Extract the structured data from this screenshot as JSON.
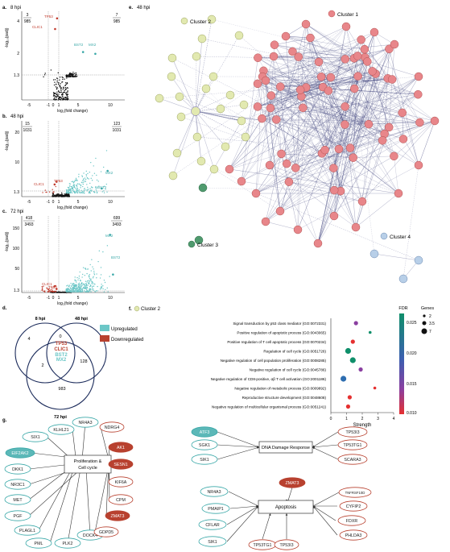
{
  "panels": {
    "a": {
      "letter": "a.",
      "title": "8 hpi",
      "left_frac": {
        "num": "3",
        "den": "985"
      },
      "right_frac": {
        "num": "7",
        "den": "985"
      },
      "ylabel": "-log₁₀(padj)",
      "xlabel": "log₂(fold change)",
      "yticks": [
        "4",
        "2",
        "1.3"
      ],
      "xticks": [
        "-5",
        "-1",
        "0",
        "1",
        "5",
        "10"
      ],
      "down_labels": [
        "TP53",
        "CLIC1"
      ],
      "up_labels": [
        "BST2",
        "MX2"
      ]
    },
    "b": {
      "letter": "b.",
      "title": "48 hpi",
      "left_frac": {
        "num": "15",
        "den": "1031"
      },
      "right_frac": {
        "num": "123",
        "den": "1031"
      },
      "ylabel": "-log₁₀(padj)",
      "xlabel": "log₂(fold change)",
      "yticks": [
        "20",
        "10",
        "1.3"
      ],
      "xticks": [
        "-5",
        "-1",
        "0",
        "1",
        "5",
        "10"
      ],
      "down_labels": [
        "CLIC1",
        "TP53"
      ],
      "up_labels": [
        "MX2",
        "BST2"
      ]
    },
    "c": {
      "letter": "c.",
      "title": "72 hpi",
      "left_frac": {
        "num": "418",
        "den": "3493"
      },
      "right_frac": {
        "num": "699",
        "den": "3493"
      },
      "ylabel": "-log₁₀(padj)",
      "xlabel": "log₂(fold change)",
      "yticks": [
        "150",
        "100",
        "50",
        "1.3"
      ],
      "xticks": [
        "-5",
        "-1",
        "0",
        "1",
        "5",
        "10"
      ],
      "down_labels": [
        "CLIC1",
        "TP53"
      ],
      "up_labels": [
        "MX2",
        "BST2"
      ]
    },
    "d": {
      "letter": "d.",
      "sets": [
        "8 hpi",
        "48 hpi",
        "72 hpi"
      ],
      "counts": {
        "only8": "4",
        "only48": "",
        "only72": "983",
        "i8_48": "0",
        "i48_72": "128",
        "i8_72": "2"
      },
      "center": [
        "TP53",
        "CLIC1",
        "BST2",
        "MX2"
      ],
      "legend": [
        {
          "label": "Upregulated",
          "color": "#6cc7c7"
        },
        {
          "label": "Downregulated",
          "color": "#b8412f"
        }
      ]
    },
    "e": {
      "letter": "e.",
      "title": "48 hpi",
      "clusters": [
        {
          "label": "Cluster 1",
          "color": "#e8868a"
        },
        {
          "label": "Cluster 2",
          "color": "#e2e9b0"
        },
        {
          "label": "Cluster 3",
          "color": "#4f9a6e"
        },
        {
          "label": "Cluster 4",
          "color": "#b8cfe8"
        }
      ]
    },
    "f": {
      "letter": "f.",
      "cluster_label": "Cluster 2",
      "xlabel": "Strength",
      "fdr_title": "FDR",
      "fdr_ticks": [
        "0.025",
        "0.020",
        "0.015",
        "0.010"
      ],
      "genes_title": "Genes",
      "genes_sizes": [
        "2",
        "3.5",
        "7"
      ]
    },
    "g": {
      "letter": "g.",
      "prolif": {
        "label": "Proliferation &\nCell cycle",
        "up": [
          "SIX1",
          "KLHL21",
          "NR4A3",
          "EIF2AK2",
          "DKK1",
          "NR3C1",
          "MET",
          "PGF",
          "PLAGL1",
          "PML",
          "PLK2",
          "DOCK4"
        ],
        "down": [
          "NDRG4",
          "AK1",
          "SESN1",
          "KIF6A",
          "CPM",
          "ZMAT3",
          "GDPD5"
        ]
      },
      "dna": {
        "label": "DNA Damage Response",
        "left": [
          "ATF3",
          "SGK1",
          "SIK1"
        ],
        "right": [
          "TP53I3",
          "TP53TG1",
          "SCARA3"
        ]
      },
      "apop": {
        "label": "Apoptosis",
        "top": [
          "ZMAT3"
        ],
        "left": [
          "NR4A3",
          "PMAIP1",
          "CFLAR",
          "SIK1"
        ],
        "right": [
          "TNFRSF10D",
          "CYFIP2",
          "FDXR",
          "PHLDA3"
        ],
        "bottom": [
          "TP53TG1",
          "TP53I3"
        ]
      }
    }
  },
  "chart_data": [
    {
      "type": "scatter",
      "title": "8 hpi",
      "xlabel": "log2(fold change)",
      "ylabel": "-log10(padj)",
      "xlim": [
        -8,
        13
      ],
      "ylim": [
        0,
        5
      ],
      "threshold": {
        "y": 1.3,
        "x": [
          -1,
          1
        ]
      },
      "labeled_points": [
        {
          "name": "TP53",
          "x": -0.8,
          "y": 4.6
        },
        {
          "name": "CLIC1",
          "x": -1.2,
          "y": 4.0
        },
        {
          "name": "BST2",
          "x": 4.5,
          "y": 2.7
        },
        {
          "name": "MX2",
          "x": 7.0,
          "y": 2.6
        }
      ],
      "counts": {
        "down": 3,
        "up": 7,
        "total": 985
      }
    },
    {
      "type": "scatter",
      "title": "48 hpi",
      "xlabel": "log2(fold change)",
      "ylabel": "-log10(padj)",
      "xlim": [
        -8,
        13
      ],
      "ylim": [
        0,
        28
      ],
      "threshold": {
        "y": 1.3,
        "x": [
          -1,
          1
        ]
      },
      "labeled_points": [
        {
          "name": "CLIC1",
          "x": -1.3,
          "y": 4.5
        },
        {
          "name": "TP53",
          "x": -0.9,
          "y": 5.5
        },
        {
          "name": "MX2",
          "x": 9.5,
          "y": 9.5
        },
        {
          "name": "BST2",
          "x": 8.3,
          "y": 3.0
        }
      ],
      "counts": {
        "down": 15,
        "up": 123,
        "total": 1031
      }
    },
    {
      "type": "scatter",
      "title": "72 hpi",
      "xlabel": "log2(fold change)",
      "ylabel": "-log10(padj)",
      "xlim": [
        -8,
        13
      ],
      "ylim": [
        0,
        170
      ],
      "threshold": {
        "y": 1.3,
        "x": [
          -1,
          1
        ]
      },
      "labeled_points": [
        {
          "name": "CLIC1",
          "x": -1.3,
          "y": 14
        },
        {
          "name": "TP53",
          "x": -0.9,
          "y": 8
        },
        {
          "name": "MX2",
          "x": 10.0,
          "y": 128
        },
        {
          "name": "BST2",
          "x": 10.6,
          "y": 40
        }
      ],
      "counts": {
        "down": 418,
        "up": 699,
        "total": 3493
      }
    },
    {
      "type": "scatter",
      "title": "",
      "xlabel": "Strength",
      "ylabel": "",
      "xlim": [
        0,
        4
      ],
      "categories": [
        "Signal transduction by p53 class mediator (GO:0072331)",
        "Positive regulation of apoptotic process (GO:0043065)",
        "Positive regulation of T cell apoptotic process (GO:0070234)",
        "Regulation of cell cycle (GO:0051726)",
        "Negative regulation of cell population proliferation (GO:0008285)",
        "Negative regulation of cell cycle (GO:0045786)",
        "Negative regulation of CD8-positive, αβ T cell activation (GO:2001186)",
        "Negative regulation of metabolic process (GO:0009892)",
        "Reproductive structure development (GO:0048608)",
        "Negative regulation of multicellular organismal process (GO:0051241)"
      ],
      "series": [
        {
          "values": [
            1.6,
            2.5,
            1.4,
            1.1,
            1.4,
            1.9,
            0.8,
            2.8,
            1.2,
            1.1
          ],
          "fdr": [
            0.015,
            0.025,
            0.011,
            0.025,
            0.025,
            0.016,
            0.02,
            0.01,
            0.011,
            0.011
          ],
          "genes": [
            3,
            2,
            3,
            7,
            7,
            3,
            7,
            2,
            3,
            3
          ]
        }
      ],
      "xticks": [
        "0",
        "1",
        "2",
        "3",
        "4"
      ]
    }
  ]
}
